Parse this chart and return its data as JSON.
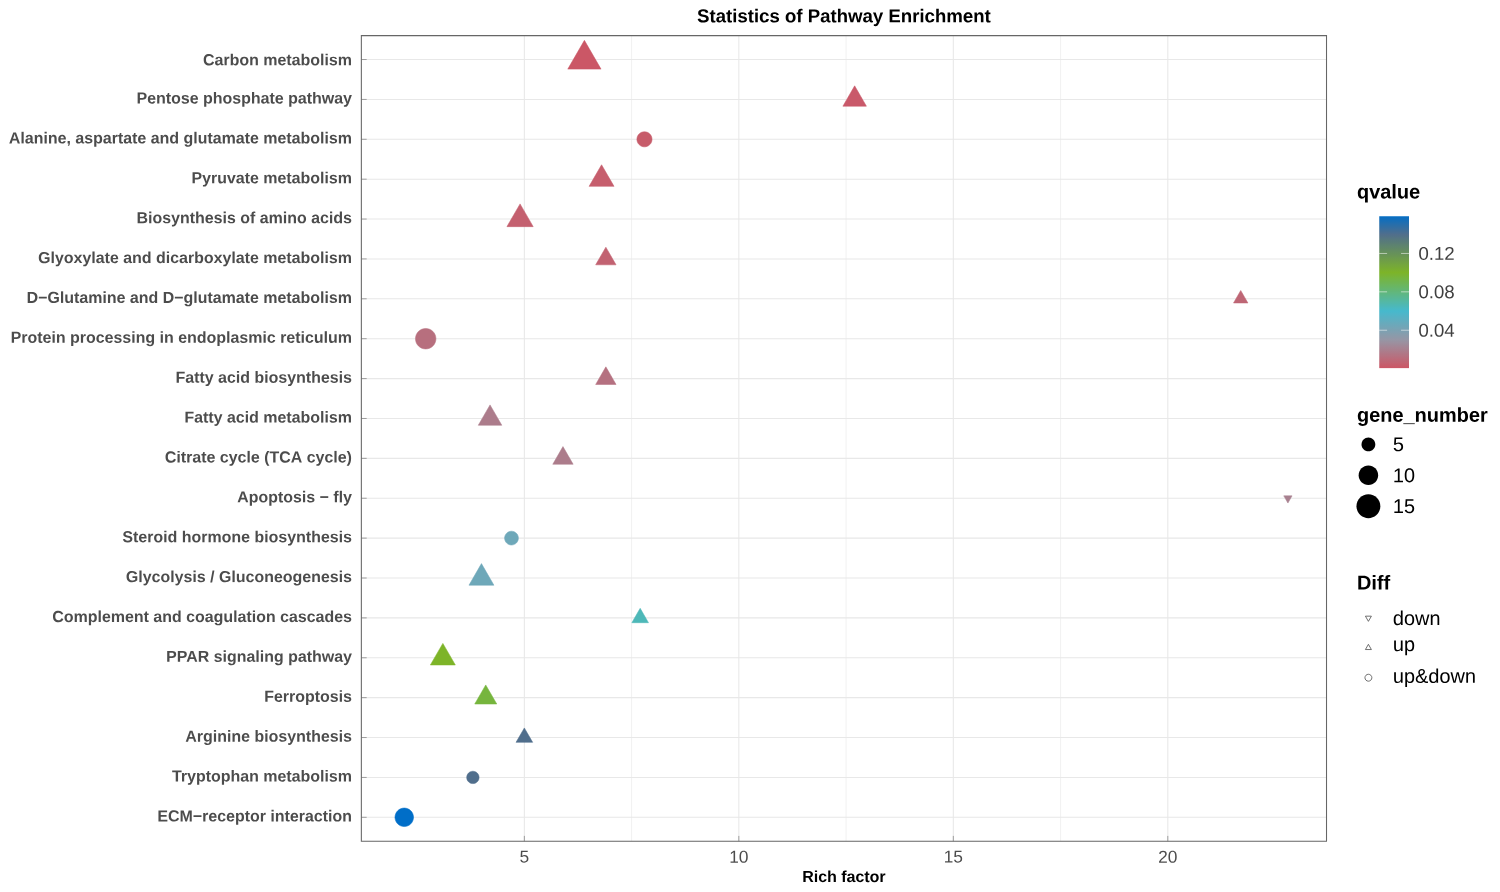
{
  "chart_data": {
    "type": "bubble",
    "orientation": "horizontal",
    "title": "Statistics of Pathway Enrichment",
    "xlabel": "Rich factor",
    "clabel": "qvalue",
    "legend_title": "Diff",
    "annotations": [
      "gene_number"
    ],
    "categories": [
      "Carbon metabolism",
      "Pentose phosphate pathway",
      "Alanine, aspartate and glutamate metabolism",
      "Pyruvate metabolism",
      "Biosynthesis of amino acids",
      "Glyoxylate and dicarboxylate metabolism",
      "D−Glutamine and D−glutamate metabolism",
      "Protein processing in endoplasmic reticulum",
      "Fatty acid biosynthesis",
      "Fatty acid metabolism",
      "Citrate cycle (TCA cycle)",
      "Apoptosis − fly",
      "Steroid hormone biosynthesis",
      "Glycolysis / Gluconeogenesis",
      "Complement and coagulation cascades",
      "PPAR signaling pathway",
      "Ferroptosis",
      "Arginine biosynthesis",
      "Tryptophan metabolism",
      "ECM−receptor interaction"
    ],
    "series": [
      {
        "name": "down",
        "marker": "triangle-down",
        "values": [
          null,
          null,
          null,
          null,
          null,
          null,
          null,
          null,
          null,
          null,
          null,
          22.8,
          null,
          null,
          null,
          null,
          null,
          null,
          null,
          null
        ],
        "sizes": [
          null,
          null,
          null,
          null,
          null,
          null,
          null,
          null,
          null,
          null,
          null,
          1,
          null,
          null,
          null,
          null,
          null,
          null,
          null,
          null
        ],
        "cvalues": [
          null,
          null,
          null,
          null,
          null,
          null,
          null,
          null,
          null,
          null,
          null,
          0.02,
          null,
          null,
          null,
          null,
          null,
          null,
          null,
          null
        ],
        "colors": [
          null,
          null,
          null,
          null,
          null,
          null,
          null,
          null,
          null,
          null,
          null,
          "#a8808f",
          null,
          null,
          null,
          null,
          null,
          null,
          null,
          null
        ]
      },
      {
        "name": "up",
        "marker": "triangle",
        "values": [
          6.4,
          12.7,
          null,
          6.8,
          4.9,
          6.9,
          21.7,
          null,
          6.9,
          4.2,
          5.9,
          null,
          null,
          4.0,
          7.7,
          3.1,
          4.1,
          5.0,
          null,
          null
        ],
        "sizes": [
          16,
          8,
          null,
          9,
          10,
          6,
          3,
          null,
          6,
          8,
          6,
          null,
          null,
          9,
          4,
          9,
          7,
          4,
          null,
          null
        ],
        "cvalues": [
          0.001,
          0.002,
          null,
          0.004,
          0.005,
          0.006,
          0.008,
          null,
          0.013,
          0.018,
          0.018,
          null,
          null,
          0.045,
          0.065,
          0.1,
          0.095,
          0.14,
          null,
          null
        ],
        "colors": [
          "#cb5766",
          "#c9596a",
          null,
          "#c65e6d",
          "#c4606f",
          "#c26271",
          "#be6675",
          null,
          "#b57180",
          "#ac7c8b",
          "#ac7c8b",
          null,
          null,
          "#6ea8b9",
          "#4db8b8",
          "#7db428",
          "#76b53d",
          "#506e8c",
          null,
          null
        ]
      },
      {
        "name": "up&down",
        "marker": "circle",
        "values": [
          null,
          null,
          7.8,
          null,
          null,
          null,
          null,
          2.7,
          null,
          null,
          null,
          null,
          4.7,
          null,
          null,
          null,
          null,
          null,
          3.8,
          2.2
        ],
        "sizes": [
          null,
          null,
          6,
          null,
          null,
          null,
          null,
          11,
          null,
          null,
          null,
          null,
          5,
          null,
          null,
          null,
          null,
          null,
          4,
          9
        ],
        "cvalues": [
          null,
          null,
          0.003,
          null,
          null,
          null,
          null,
          0.012,
          null,
          null,
          null,
          null,
          0.045,
          null,
          null,
          null,
          null,
          null,
          0.14,
          0.16
        ],
        "colors": [
          null,
          null,
          "#c75c6a",
          null,
          null,
          null,
          null,
          "#b76f7e",
          null,
          null,
          null,
          null,
          "#6ea8b9",
          null,
          null,
          null,
          null,
          null,
          "#506e8c",
          "#006ec8"
        ]
      }
    ],
    "size_legend": [
      5,
      10,
      15
    ],
    "xlim": [
      1.2,
      23.7
    ],
    "xticks": [
      5,
      10,
      15,
      20
    ],
    "clim": [
      0,
      0.16
    ],
    "cticks": [
      0.04,
      0.08,
      0.12
    ],
    "grid": true,
    "legend": "right"
  }
}
